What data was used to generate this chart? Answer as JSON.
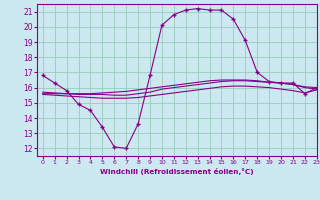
{
  "xlabel": "Windchill (Refroidissement éolien,°C)",
  "xlim": [
    -0.5,
    23
  ],
  "ylim": [
    11.5,
    21.5
  ],
  "yticks": [
    12,
    13,
    14,
    15,
    16,
    17,
    18,
    19,
    20,
    21
  ],
  "xticks": [
    0,
    1,
    2,
    3,
    4,
    5,
    6,
    7,
    8,
    9,
    10,
    11,
    12,
    13,
    14,
    15,
    16,
    17,
    18,
    19,
    20,
    21,
    22,
    23
  ],
  "bg_color": "#cce8f0",
  "line_color": "#880088",
  "grid_color": "#99ccbb",
  "lines": [
    {
      "x": [
        0,
        1,
        2,
        3,
        4,
        5,
        6,
        7,
        8,
        9,
        10,
        11,
        12,
        13,
        14,
        15,
        16,
        17,
        18,
        19,
        20,
        21,
        22,
        23
      ],
      "y": [
        16.8,
        16.3,
        15.8,
        14.9,
        14.5,
        13.4,
        12.1,
        12.0,
        13.6,
        16.8,
        20.1,
        20.8,
        21.1,
        21.2,
        21.1,
        21.1,
        20.5,
        19.1,
        17.0,
        16.4,
        16.3,
        16.3,
        15.6,
        16.0
      ],
      "marker": "+"
    },
    {
      "x": [
        0,
        1,
        2,
        3,
        4,
        5,
        6,
        7,
        8,
        9,
        10,
        11,
        12,
        13,
        14,
        15,
        16,
        17,
        18,
        19,
        20,
        21,
        22,
        23
      ],
      "y": [
        15.7,
        15.65,
        15.6,
        15.55,
        15.55,
        15.55,
        15.5,
        15.5,
        15.6,
        15.7,
        15.9,
        16.0,
        16.1,
        16.2,
        16.3,
        16.4,
        16.45,
        16.45,
        16.4,
        16.35,
        16.3,
        16.2,
        16.05,
        16.0
      ],
      "marker": null
    },
    {
      "x": [
        0,
        1,
        2,
        3,
        4,
        5,
        6,
        7,
        8,
        9,
        10,
        11,
        12,
        13,
        14,
        15,
        16,
        17,
        18,
        19,
        20,
        21,
        22,
        23
      ],
      "y": [
        15.6,
        15.6,
        15.6,
        15.6,
        15.6,
        15.65,
        15.7,
        15.75,
        15.85,
        15.95,
        16.05,
        16.15,
        16.25,
        16.35,
        16.45,
        16.5,
        16.5,
        16.5,
        16.45,
        16.35,
        16.3,
        16.2,
        16.0,
        15.9
      ],
      "marker": null
    },
    {
      "x": [
        0,
        1,
        2,
        3,
        4,
        5,
        6,
        7,
        8,
        9,
        10,
        11,
        12,
        13,
        14,
        15,
        16,
        17,
        18,
        19,
        20,
        21,
        22,
        23
      ],
      "y": [
        15.55,
        15.5,
        15.45,
        15.4,
        15.35,
        15.3,
        15.3,
        15.3,
        15.35,
        15.45,
        15.55,
        15.65,
        15.75,
        15.85,
        15.95,
        16.05,
        16.1,
        16.1,
        16.05,
        16.0,
        15.9,
        15.8,
        15.65,
        15.85
      ],
      "marker": null
    }
  ]
}
